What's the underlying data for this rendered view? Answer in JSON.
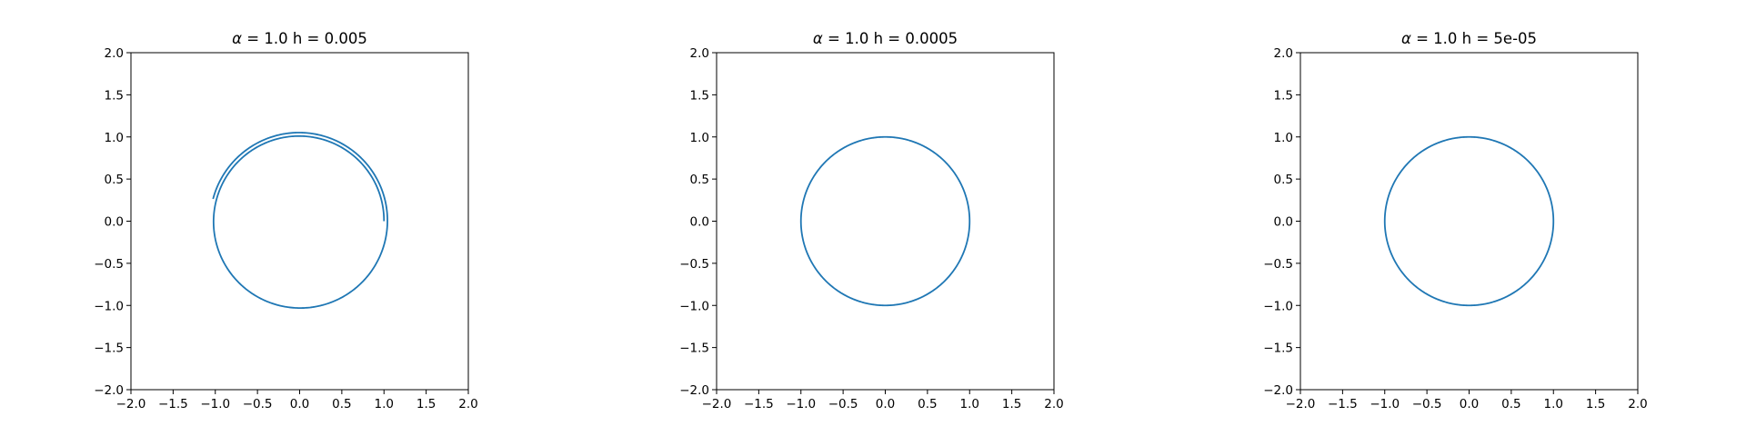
{
  "chart_data": [
    {
      "type": "line",
      "title": "α = 1.0 h = 0.005",
      "title_parts": {
        "symbol": "α",
        "rest": " = 1.0 h = 0.005"
      },
      "xlabel": "",
      "ylabel": "",
      "xlim": [
        -2.0,
        2.0
      ],
      "ylim": [
        -2.0,
        2.0
      ],
      "xticks": [
        -2.0,
        -1.5,
        -1.0,
        -0.5,
        0.0,
        0.5,
        1.0,
        1.5,
        2.0
      ],
      "yticks": [
        -2.0,
        -1.5,
        -1.0,
        -0.5,
        0.0,
        0.5,
        1.0,
        1.5,
        2.0
      ],
      "xtick_labels": [
        "−2.0",
        "−1.5",
        "−1.0",
        "−0.5",
        "0.0",
        "0.5",
        "1.0",
        "1.5",
        "2.0"
      ],
      "ytick_labels": [
        "−2.0",
        "−1.5",
        "−1.0",
        "−0.5",
        "0.0",
        "0.5",
        "1.0",
        "1.5",
        "2.0"
      ],
      "grid": false,
      "series": [
        {
          "color": "#1f77b4",
          "curve": {
            "kind": "spiral",
            "r_start": 1.0,
            "r_end": 1.06,
            "turns": 1.46
          }
        }
      ]
    },
    {
      "type": "line",
      "title": "α = 1.0 h = 0.0005",
      "title_parts": {
        "symbol": "α",
        "rest": " = 1.0 h = 0.0005"
      },
      "xlabel": "",
      "ylabel": "",
      "xlim": [
        -2.0,
        2.0
      ],
      "ylim": [
        -2.0,
        2.0
      ],
      "xticks": [
        -2.0,
        -1.5,
        -1.0,
        -0.5,
        0.0,
        0.5,
        1.0,
        1.5,
        2.0
      ],
      "yticks": [
        -2.0,
        -1.5,
        -1.0,
        -0.5,
        0.0,
        0.5,
        1.0,
        1.5,
        2.0
      ],
      "xtick_labels": [
        "−2.0",
        "−1.5",
        "−1.0",
        "−0.5",
        "0.0",
        "0.5",
        "1.0",
        "1.5",
        "2.0"
      ],
      "ytick_labels": [
        "−2.0",
        "−1.5",
        "−1.0",
        "−0.5",
        "0.0",
        "0.5",
        "1.0",
        "1.5",
        "2.0"
      ],
      "grid": false,
      "series": [
        {
          "color": "#1f77b4",
          "curve": {
            "kind": "circle",
            "r": 1.0
          }
        }
      ]
    },
    {
      "type": "line",
      "title": "α = 1.0 h = 5e-05",
      "title_parts": {
        "symbol": "α",
        "rest": " = 1.0 h = 5e-05"
      },
      "xlabel": "",
      "ylabel": "",
      "xlim": [
        -2.0,
        2.0
      ],
      "ylim": [
        -2.0,
        2.0
      ],
      "xticks": [
        -2.0,
        -1.5,
        -1.0,
        -0.5,
        0.0,
        0.5,
        1.0,
        1.5,
        2.0
      ],
      "yticks": [
        -2.0,
        -1.5,
        -1.0,
        -0.5,
        0.0,
        0.5,
        1.0,
        1.5,
        2.0
      ],
      "xtick_labels": [
        "−2.0",
        "−1.5",
        "−1.0",
        "−0.5",
        "0.0",
        "0.5",
        "1.0",
        "1.5",
        "2.0"
      ],
      "ytick_labels": [
        "−2.0",
        "−1.5",
        "−1.0",
        "−0.5",
        "0.0",
        "0.5",
        "1.0",
        "1.5",
        "2.0"
      ],
      "grid": false,
      "series": [
        {
          "color": "#1f77b4",
          "curve": {
            "kind": "circle",
            "r": 1.0
          }
        }
      ]
    }
  ]
}
